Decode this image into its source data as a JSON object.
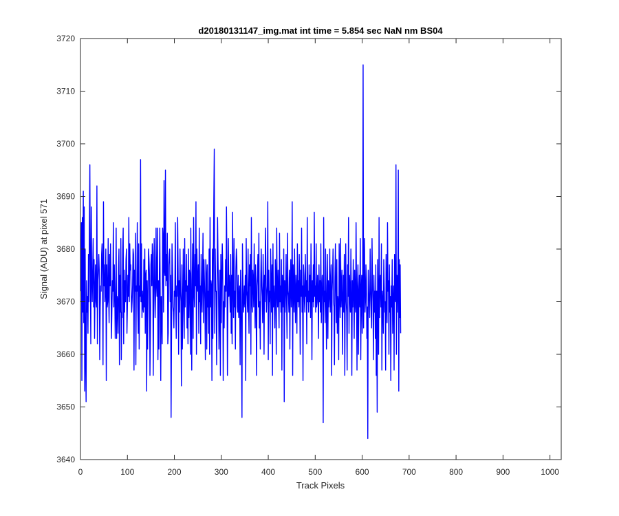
{
  "chart_data": {
    "type": "line",
    "title": "d20180131147_img.mat int time = 5.854 sec  NaN nm BS04",
    "xlabel": "Track Pixels",
    "ylabel": "Signal (ADU) at pixel 571",
    "xlim": [
      0,
      1024
    ],
    "ylim": [
      3640,
      3720
    ],
    "xticks": [
      0,
      100,
      200,
      300,
      400,
      500,
      600,
      700,
      800,
      900,
      1000
    ],
    "yticks": [
      3640,
      3650,
      3660,
      3670,
      3680,
      3690,
      3700,
      3710,
      3720
    ],
    "grid": false,
    "box": true,
    "series": [
      {
        "color": "#0000ff",
        "x_start": 1,
        "x_step": 1,
        "values": [
          3672,
          3685,
          3655,
          3686,
          3668,
          3691,
          3666,
          3688,
          3653,
          3680,
          3659,
          3651,
          3674,
          3668,
          3671,
          3664,
          3679,
          3670,
          3684,
          3696,
          3673,
          3662,
          3688,
          3675,
          3670,
          3676,
          3682,
          3669,
          3678,
          3663,
          3672,
          3677,
          3670,
          3669,
          3692,
          3662,
          3674,
          3676,
          3679,
          3676,
          3659,
          3669,
          3673,
          3672,
          3679,
          3681,
          3675,
          3658,
          3689,
          3673,
          3677,
          3670,
          3673,
          3680,
          3655,
          3677,
          3669,
          3670,
          3682,
          3671,
          3666,
          3679,
          3673,
          3681,
          3674,
          3663,
          3669,
          3674,
          3672,
          3685,
          3669,
          3677,
          3672,
          3663,
          3668,
          3684,
          3663,
          3671,
          3670,
          3664,
          3676,
          3680,
          3658,
          3675,
          3668,
          3682,
          3659,
          3668,
          3667,
          3680,
          3684,
          3662,
          3676,
          3668,
          3674,
          3670,
          3678,
          3680,
          3664,
          3669,
          3675,
          3671,
          3686,
          3670,
          3681,
          3676,
          3677,
          3672,
          3668,
          3670,
          3673,
          3680,
          3679,
          3657,
          3676,
          3672,
          3683,
          3658,
          3673,
          3672,
          3685,
          3669,
          3664,
          3681,
          3661,
          3673,
          3671,
          3697,
          3670,
          3681,
          3667,
          3672,
          3669,
          3668,
          3678,
          3669,
          3680,
          3664,
          3675,
          3676,
          3653,
          3674,
          3661,
          3670,
          3680,
          3678,
          3675,
          3656,
          3665,
          3677,
          3679,
          3673,
          3681,
          3679,
          3656,
          3670,
          3682,
          3675,
          3667,
          3671,
          3684,
          3673,
          3671,
          3684,
          3659,
          3674,
          3661,
          3675,
          3684,
          3669,
          3655,
          3671,
          3668,
          3662,
          3684,
          3682,
          3668,
          3693,
          3676,
          3675,
          3695,
          3673,
          3679,
          3674,
          3683,
          3662,
          3664,
          3677,
          3679,
          3680,
          3670,
          3675,
          3648,
          3664,
          3681,
          3676,
          3669,
          3668,
          3665,
          3672,
          3671,
          3685,
          3669,
          3663,
          3673,
          3671,
          3686,
          3676,
          3660,
          3674,
          3668,
          3680,
          3672,
          3670,
          3654,
          3677,
          3661,
          3668,
          3680,
          3671,
          3663,
          3682,
          3669,
          3674,
          3672,
          3679,
          3665,
          3673,
          3662,
          3680,
          3667,
          3676,
          3675,
          3660,
          3684,
          3670,
          3657,
          3674,
          3681,
          3663,
          3686,
          3672,
          3669,
          3679,
          3673,
          3689,
          3660,
          3680,
          3674,
          3672,
          3677,
          3664,
          3684,
          3670,
          3673,
          3662,
          3679,
          3671,
          3668,
          3675,
          3683,
          3666,
          3678,
          3674,
          3670,
          3659,
          3678,
          3675,
          3661,
          3677,
          3669,
          3672,
          3664,
          3680,
          3660,
          3686,
          3669,
          3674,
          3673,
          3655,
          3680,
          3663,
          3676,
          3689,
          3699,
          3664,
          3680,
          3672,
          3672,
          3658,
          3671,
          3686,
          3678,
          3672,
          3661,
          3668,
          3676,
          3656,
          3679,
          3666,
          3674,
          3681,
          3677,
          3655,
          3670,
          3665,
          3673,
          3669,
          3678,
          3672,
          3688,
          3676,
          3656,
          3670,
          3682,
          3671,
          3675,
          3672,
          3668,
          3679,
          3664,
          3675,
          3662,
          3687,
          3673,
          3667,
          3682,
          3669,
          3672,
          3661,
          3676,
          3680,
          3678,
          3669,
          3668,
          3675,
          3667,
          3671,
          3673,
          3658,
          3676,
          3672,
          3662,
          3648,
          3681,
          3674,
          3668,
          3670,
          3673,
          3669,
          3675,
          3655,
          3682,
          3672,
          3671,
          3668,
          3680,
          3670,
          3664,
          3677,
          3673,
          3679,
          3660,
          3686,
          3670,
          3668,
          3676,
          3674,
          3669,
          3681,
          3672,
          3665,
          3677,
          3671,
          3656,
          3673,
          3675,
          3679,
          3669,
          3683,
          3665,
          3670,
          3661,
          3674,
          3680,
          3673,
          3671,
          3666,
          3679,
          3672,
          3660,
          3675,
          3670,
          3684,
          3677,
          3668,
          3671,
          3673,
          3689,
          3659,
          3676,
          3670,
          3672,
          3662,
          3680,
          3674,
          3668,
          3677,
          3656,
          3681,
          3669,
          3673,
          3670,
          3665,
          3678,
          3675,
          3660,
          3684,
          3672,
          3669,
          3676,
          3671,
          3665,
          3683,
          3670,
          3673,
          3668,
          3678,
          3657,
          3675,
          3672,
          3669,
          3680,
          3651,
          3674,
          3668,
          3672,
          3679,
          3670,
          3663,
          3683,
          3672,
          3671,
          3668,
          3676,
          3661,
          3674,
          3678,
          3669,
          3672,
          3689,
          3656,
          3677,
          3673,
          3668,
          3680,
          3671,
          3666,
          3675,
          3672,
          3664,
          3681,
          3670,
          3674,
          3669,
          3679,
          3672,
          3660,
          3676,
          3671,
          3684,
          3668,
          3673,
          3655,
          3677,
          3675,
          3670,
          3668,
          3679,
          3671,
          3674,
          3662,
          3686,
          3670,
          3672,
          3668,
          3677,
          3670,
          3675,
          3667,
          3681,
          3672,
          3659,
          3674,
          3670,
          3677,
          3669,
          3687,
          3671,
          3673,
          3668,
          3681,
          3669,
          3670,
          3675,
          3672,
          3663,
          3677,
          3670,
          3674,
          3668,
          3681,
          3666,
          3672,
          3675,
          3671,
          3647,
          3686,
          3670,
          3672,
          3666,
          3680,
          3673,
          3661,
          3670,
          3679,
          3663,
          3674,
          3669,
          3671,
          3680,
          3668,
          3673,
          3677,
          3656,
          3672,
          3675,
          3680,
          3670,
          3669,
          3658,
          3674,
          3681,
          3672,
          3666,
          3678,
          3664,
          3671,
          3670,
          3659,
          3681,
          3672,
          3667,
          3682,
          3669,
          3673,
          3676,
          3660,
          3670,
          3675,
          3668,
          3679,
          3656,
          3672,
          3681,
          3670,
          3668,
          3657,
          3677,
          3671,
          3686,
          3664,
          3675,
          3672,
          3668,
          3680,
          3670,
          3656,
          3674,
          3669,
          3678,
          3672,
          3663,
          3676,
          3670,
          3668,
          3685,
          3672,
          3657,
          3673,
          3677,
          3660,
          3671,
          3675,
          3669,
          3682,
          3659,
          3672,
          3675,
          3664,
          3670,
          3715,
          3665,
          3673,
          3682,
          3668,
          3670,
          3677,
          3674,
          3663,
          3669,
          3644,
          3676,
          3672,
          3670,
          3667,
          3680,
          3673,
          3669,
          3665,
          3682,
          3674,
          3670,
          3659,
          3675,
          3668,
          3672,
          3663,
          3677,
          3656,
          3672,
          3649,
          3678,
          3670,
          3660,
          3686,
          3667,
          3673,
          3675,
          3669,
          3681,
          3657,
          3672,
          3670,
          3664,
          3678,
          3673,
          3668,
          3670,
          3657,
          3679,
          3671,
          3666,
          3685,
          3672,
          3674,
          3660,
          3677,
          3668,
          3671,
          3655,
          3673,
          3669,
          3678,
          3664,
          3670,
          3673,
          3657,
          3679,
          3671,
          3670,
          3696,
          3660,
          3675,
          3668,
          3672,
          3695,
          3653,
          3678,
          3667,
          3677,
          3664
        ]
      }
    ]
  }
}
